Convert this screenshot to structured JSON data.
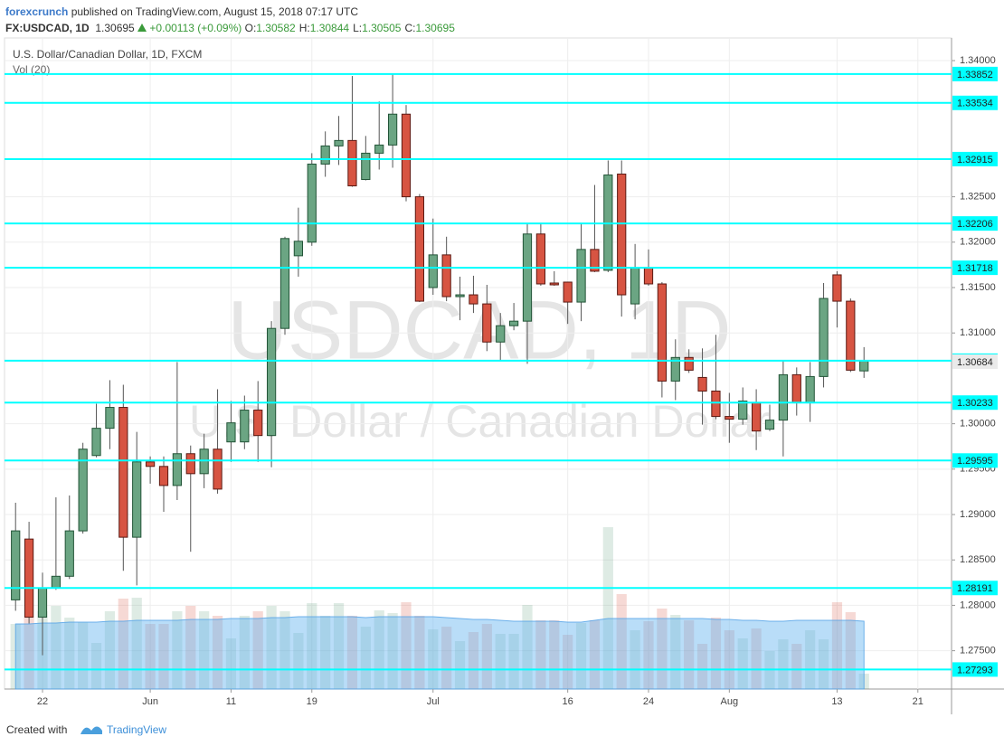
{
  "header": {
    "author": "forexcrunch",
    "published": "published on TradingView.com, August 15, 2018 07:17 UTC",
    "symbol": "FX:USDCAD, 1D",
    "last": "1.30695",
    "change": "+0.00113 (+0.09%)",
    "ohlc": [
      [
        "O:",
        "1.30582"
      ],
      [
        "H:",
        "1.30844"
      ],
      [
        "L:",
        "1.30505"
      ],
      [
        "C:",
        "1.30695"
      ]
    ]
  },
  "footer": {
    "created": "Created with",
    "brand": "TradingView"
  },
  "chart_data": {
    "type": "candlestick",
    "title": "U.S. Dollar/Canadian Dollar, 1D, FXCM",
    "volume_label": "Vol (20)",
    "watermark": "USDCAD, 1D",
    "watermark_sub": "U.S. Dollar / Canadian Dollar",
    "candles": {
      "open": [
        1.2806,
        1.2873,
        1.2787,
        1.2819,
        1.2832,
        1.2882,
        1.2965,
        1.2995,
        1.3018,
        1.2875,
        1.2958,
        1.2953,
        1.2932,
        1.2967,
        1.2945,
        1.2972,
        1.298,
        1.298,
        1.3015,
        1.2987,
        1.3105,
        1.3185,
        1.32,
        1.3286,
        1.3306,
        1.3312,
        1.3269,
        1.3298,
        1.3307,
        1.3341,
        1.325,
        1.315,
        1.3186,
        1.314,
        1.3142,
        1.3132,
        1.309,
        1.3108,
        1.3113,
        1.3209,
        1.3155,
        1.3156,
        1.3134,
        1.3192,
        1.3169,
        1.3275,
        1.3132,
        1.3172,
        1.3154,
        1.3047,
        1.3073,
        1.3051,
        1.3036,
        1.3008,
        1.3005,
        1.3023,
        1.2994,
        1.3004,
        1.3054,
        1.3023,
        1.3052,
        1.3164,
        1.3135,
        1.30582
      ],
      "high": [
        1.2913,
        1.2892,
        1.2836,
        1.2919,
        1.2921,
        1.2979,
        1.3022,
        1.3048,
        1.3043,
        1.2991,
        1.2964,
        1.2964,
        1.3068,
        1.2976,
        1.2989,
        1.3038,
        1.3025,
        1.3031,
        1.3047,
        1.3113,
        1.3206,
        1.3238,
        1.3298,
        1.3322,
        1.3339,
        1.3383,
        1.3317,
        1.3355,
        1.3385,
        1.3351,
        1.3253,
        1.3226,
        1.3206,
        1.3162,
        1.3163,
        1.3153,
        1.3122,
        1.3133,
        1.322,
        1.3221,
        1.3168,
        1.3156,
        1.322,
        1.3263,
        1.329,
        1.329,
        1.3198,
        1.3192,
        1.3156,
        1.3093,
        1.3082,
        1.3083,
        1.3098,
        1.3034,
        1.304,
        1.3038,
        1.3021,
        1.307,
        1.3062,
        1.3068,
        1.3155,
        1.3168,
        1.3138,
        1.30844
      ],
      "low": [
        1.2794,
        1.278,
        1.2745,
        1.2817,
        1.2829,
        1.2879,
        1.2963,
        1.2972,
        1.2838,
        1.2822,
        1.2934,
        1.2903,
        1.2916,
        1.2859,
        1.2929,
        1.2923,
        1.2958,
        1.2972,
        1.2958,
        1.2952,
        1.3098,
        1.3162,
        1.3196,
        1.3272,
        1.3285,
        1.3261,
        1.3268,
        1.328,
        1.3282,
        1.3245,
        1.3134,
        1.3142,
        1.3135,
        1.3114,
        1.3122,
        1.308,
        1.307,
        1.3103,
        1.3066,
        1.3152,
        1.3152,
        1.311,
        1.3113,
        1.3167,
        1.3167,
        1.3118,
        1.3115,
        1.3152,
        1.3029,
        1.3026,
        1.3056,
        1.2999,
        1.3005,
        1.2979,
        1.2999,
        1.2971,
        1.2992,
        1.2964,
        1.3009,
        1.3002,
        1.304,
        1.3106,
        1.3057,
        1.30505
      ],
      "close": [
        1.2882,
        1.2787,
        1.2819,
        1.2832,
        1.2882,
        1.2972,
        1.2995,
        1.3018,
        1.2875,
        1.2958,
        1.2953,
        1.2932,
        1.2967,
        1.2945,
        1.2972,
        1.2928,
        1.3001,
        1.3015,
        1.2987,
        1.3105,
        1.3204,
        1.3201,
        1.3286,
        1.3306,
        1.3312,
        1.3262,
        1.3298,
        1.3307,
        1.3341,
        1.325,
        1.3135,
        1.3186,
        1.314,
        1.3142,
        1.3132,
        1.309,
        1.3108,
        1.3113,
        1.3209,
        1.3154,
        1.3153,
        1.3134,
        1.3192,
        1.3168,
        1.3274,
        1.3142,
        1.3172,
        1.3154,
        1.3047,
        1.3073,
        1.3059,
        1.3036,
        1.3008,
        1.3005,
        1.3025,
        1.2992,
        1.3004,
        1.3054,
        1.3023,
        1.3052,
        1.3138,
        1.3135,
        1.3059,
        1.30695
      ]
    },
    "volume": [
      72,
      79,
      86,
      92,
      79,
      74,
      51,
      86,
      100,
      101,
      72,
      72,
      86,
      92,
      86,
      81,
      56,
      81,
      86,
      92,
      86,
      62,
      95,
      81,
      95,
      81,
      69,
      87,
      84,
      96,
      81,
      66,
      69,
      53,
      63,
      72,
      61,
      61,
      93,
      76,
      76,
      60,
      73,
      76,
      179,
      105,
      65,
      75,
      89,
      82,
      76,
      50,
      79,
      65,
      56,
      67,
      42,
      55,
      50,
      65,
      55,
      96,
      85,
      17
    ],
    "volume_ma": [
      72,
      72,
      73,
      73,
      74,
      74,
      74,
      75,
      75,
      76,
      76,
      76,
      76,
      77,
      77,
      77,
      78,
      78,
      78,
      79,
      79,
      80,
      80,
      80,
      80,
      80,
      79,
      80,
      80,
      80,
      80,
      80,
      79,
      78,
      77,
      77,
      76,
      75,
      75,
      75,
      75,
      74,
      74,
      76,
      78,
      78,
      78,
      78,
      78,
      78,
      78,
      78,
      77,
      77,
      76,
      76,
      75,
      75,
      76,
      76,
      76,
      76,
      76,
      75
    ],
    "volume_lim": [
      0,
      180
    ],
    "levels": [
      1.33852,
      1.33534,
      1.32915,
      1.32206,
      1.31718,
      1.30695,
      1.30233,
      1.29595,
      1.28191,
      1.27293
    ],
    "price_label": 1.30684,
    "ylim": [
      1.27078,
      1.34249
    ],
    "yticks": [
      {
        "value": 1.34,
        "label": "1.34000"
      },
      {
        "value": 1.325,
        "label": "1.32500"
      },
      {
        "value": 1.32,
        "label": "1.32000"
      },
      {
        "value": 1.315,
        "label": "1.31500"
      },
      {
        "value": 1.31,
        "label": "1.31000"
      },
      {
        "value": 1.3,
        "label": "1.30000"
      },
      {
        "value": 1.295,
        "label": "1.29500"
      },
      {
        "value": 1.29,
        "label": "1.29000"
      },
      {
        "value": 1.285,
        "label": "1.28500"
      },
      {
        "value": 1.28,
        "label": "1.28000"
      },
      {
        "value": 1.275,
        "label": "1.27500"
      }
    ],
    "xlim": [
      -0.82,
      69.5
    ],
    "xticks": [
      {
        "value": 2,
        "label": "22"
      },
      {
        "value": 10,
        "label": "Jun"
      },
      {
        "value": 16,
        "label": "11"
      },
      {
        "value": 22,
        "label": "19"
      },
      {
        "value": 31,
        "label": "Jul"
      },
      {
        "value": 41,
        "label": "16"
      },
      {
        "value": 47,
        "label": "24"
      },
      {
        "value": 53,
        "label": "Aug"
      },
      {
        "value": 61,
        "label": "13"
      },
      {
        "value": 67,
        "label": "21"
      }
    ],
    "grid": true,
    "up_color": "#6ba583",
    "down_color": "#d75442",
    "level_color": "#00ffff"
  }
}
